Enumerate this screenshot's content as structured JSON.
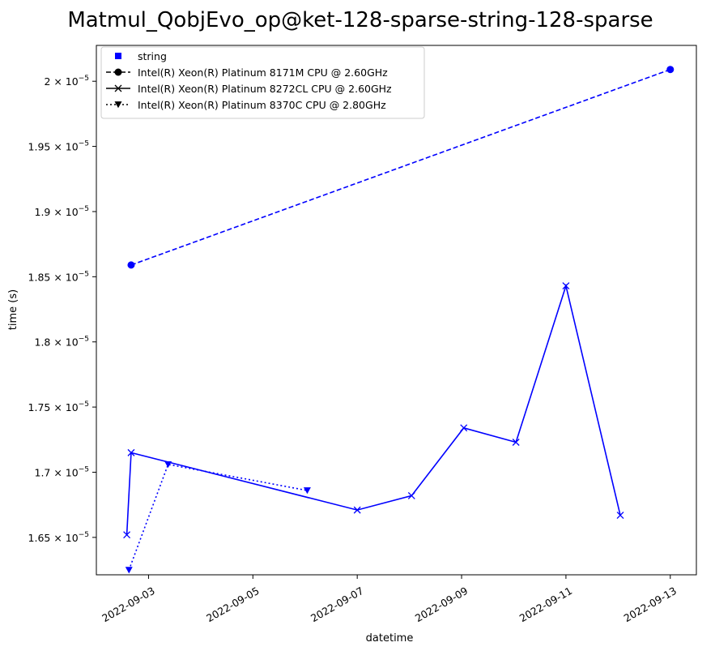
{
  "chart_data": {
    "type": "line",
    "title": "Matmul_QobjEvo_op@ket-128-sparse-string-128-sparse",
    "xlabel": "datetime",
    "ylabel": "time (s)",
    "xlim": [
      "2022-09-02T00:00",
      "2022-09-13T12:00"
    ],
    "ylim": [
      1.6213e-05,
      2.0275e-05
    ],
    "x_ticks": [
      "2022-09-03",
      "2022-09-05",
      "2022-09-07",
      "2022-09-09",
      "2022-09-11",
      "2022-09-13"
    ],
    "y_ticks": [
      {
        "value": 1.65e-05,
        "mantissa": "1.65",
        "exp": "−5"
      },
      {
        "value": 1.7e-05,
        "mantissa": "1.7",
        "exp": "−5"
      },
      {
        "value": 1.75e-05,
        "mantissa": "1.75",
        "exp": "−5"
      },
      {
        "value": 1.8e-05,
        "mantissa": "1.8",
        "exp": "−5"
      },
      {
        "value": 1.85e-05,
        "mantissa": "1.85",
        "exp": "−5"
      },
      {
        "value": 1.9e-05,
        "mantissa": "1.9",
        "exp": "−5"
      },
      {
        "value": 1.95e-05,
        "mantissa": "1.95",
        "exp": "−5"
      },
      {
        "value": 2e-05,
        "mantissa": "2",
        "exp": "−5"
      }
    ],
    "legend_position": "top-left",
    "legend": [
      {
        "label": "string",
        "marker": "square",
        "line": "none"
      },
      {
        "label": "Intel(R) Xeon(R) Platinum 8171M CPU @ 2.60GHz",
        "marker": "circle",
        "line": "dashed"
      },
      {
        "label": "Intel(R) Xeon(R) Platinum 8272CL CPU @ 2.60GHz",
        "marker": "x",
        "line": "solid"
      },
      {
        "label": "Intel(R) Xeon(R) Platinum 8370C CPU @ 2.80GHz",
        "marker": "triangle-down",
        "line": "dotted"
      }
    ],
    "series": [
      {
        "name": "Intel(R) Xeon(R) Platinum 8171M CPU @ 2.60GHz",
        "color": "#0000ff",
        "marker": "circle",
        "line": "dashed",
        "x": [
          "2022-09-02T16:00",
          "2022-09-13T00:00"
        ],
        "y": [
          1.859e-05,
          2.009e-05
        ]
      },
      {
        "name": "Intel(R) Xeon(R) Platinum 8272CL CPU @ 2.60GHz",
        "color": "#0000ff",
        "marker": "x",
        "line": "solid",
        "x": [
          "2022-09-02T14:00",
          "2022-09-02T16:00",
          "2022-09-07T00:00",
          "2022-09-08T01:00",
          "2022-09-09T01:00",
          "2022-09-10T01:00",
          "2022-09-11T00:00",
          "2022-09-12T01:00"
        ],
        "y": [
          1.652e-05,
          1.715e-05,
          1.671e-05,
          1.682e-05,
          1.734e-05,
          1.723e-05,
          1.843e-05,
          1.667e-05
        ]
      },
      {
        "name": "Intel(R) Xeon(R) Platinum 8370C CPU @ 2.80GHz",
        "color": "#0000ff",
        "marker": "triangle-down",
        "line": "dotted",
        "x": [
          "2022-09-02T15:00",
          "2022-09-03T09:00",
          "2022-09-06T01:00"
        ],
        "y": [
          1.625e-05,
          1.706e-05,
          1.686e-05
        ]
      }
    ]
  }
}
